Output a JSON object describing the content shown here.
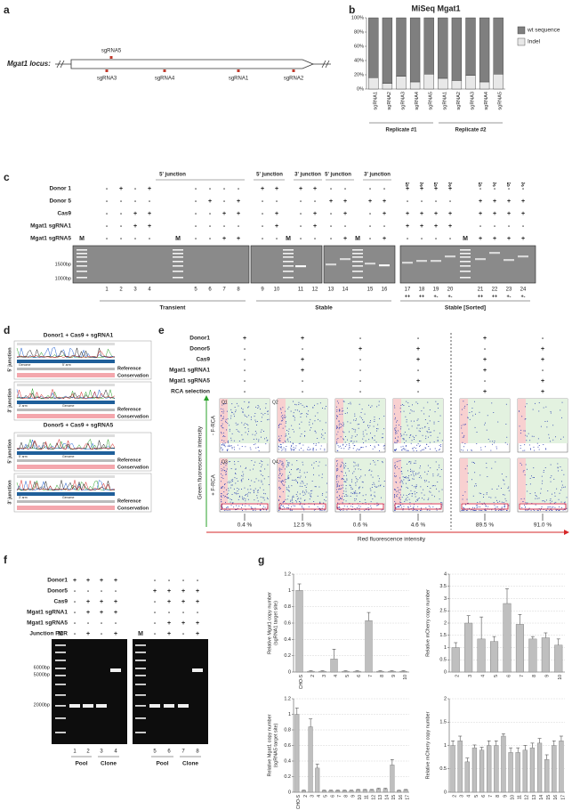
{
  "panel_labels": [
    "a",
    "b",
    "c",
    "d",
    "e",
    "f",
    "g"
  ],
  "locus": {
    "label": "Mgat1 locus:",
    "sgrnas": [
      "sgRNA5",
      "sgRNA3",
      "sgRNA4",
      "sgRNA1",
      "sgRNA2"
    ]
  },
  "chart_data": [
    {
      "type": "stacked_bar",
      "title": "MiSeq Mgat1",
      "categories": [
        "sgRNA1",
        "sgRNA2",
        "sgRNA3",
        "sgRNA4",
        "sgRNA5",
        "sgRNA1",
        "sgRNA2",
        "sgRNA3",
        "sgRNA4",
        "sgRNA5"
      ],
      "series": [
        {
          "name": "Indel",
          "color": "#e8e8e8",
          "values": [
            16,
            8,
            18,
            10,
            21,
            15,
            12,
            19,
            10,
            21
          ]
        },
        {
          "name": "wt sequence",
          "color": "#7f7f7f",
          "values": [
            84,
            92,
            82,
            90,
            79,
            85,
            88,
            81,
            90,
            79
          ]
        }
      ],
      "ylim": [
        0,
        100
      ],
      "yticks": [
        {
          "value": 0,
          "label": "0%"
        },
        {
          "value": 20,
          "label": "20%"
        },
        {
          "value": 40,
          "label": "40%"
        },
        {
          "value": 60,
          "label": "60%"
        },
        {
          "value": 80,
          "label": "80%"
        },
        {
          "value": 100,
          "label": "100%"
        }
      ],
      "groups": [
        "Replicate #1",
        "Replicate #2"
      ],
      "legend": "right"
    },
    {
      "type": "bar",
      "ylabel": [
        "Relative Mgat1 copy number",
        "(sgRNA1 target site)"
      ],
      "categories": [
        "CHO-S",
        "2",
        "3",
        "4",
        "5",
        "6",
        "7",
        "8",
        "9",
        "10"
      ],
      "values": [
        1.0,
        0.01,
        0.01,
        0.16,
        0.01,
        0.01,
        0.63,
        0.01,
        0.01,
        0.01
      ],
      "errors": [
        0.08,
        0.005,
        0.005,
        0.12,
        0.005,
        0.005,
        0.1,
        0.005,
        0.005,
        0.005
      ],
      "ylim": [
        0,
        1.2
      ],
      "yticks": [
        0,
        0.2,
        0.4,
        0.6,
        0.8,
        1,
        1.2
      ],
      "color": "#bfbfbf",
      "first_category_color": "#e8303a",
      "grid": true
    },
    {
      "type": "bar",
      "ylabel": [
        "Relative mCherry copy number"
      ],
      "categories": [
        "2",
        "3",
        "4",
        "5",
        "6",
        "7",
        "8",
        "9",
        "10"
      ],
      "values": [
        1.0,
        2.0,
        1.35,
        1.25,
        2.8,
        1.95,
        1.35,
        1.4,
        1.1
      ],
      "errors": [
        0.2,
        0.3,
        0.9,
        0.2,
        0.6,
        0.4,
        0.1,
        0.2,
        0.25
      ],
      "ylim": [
        0,
        4
      ],
      "yticks": [
        0,
        0.5,
        1,
        1.5,
        2,
        2.5,
        3,
        3.5,
        4
      ],
      "color": "#bfbfbf",
      "first_category_color": "#e8303a",
      "grid": true
    },
    {
      "type": "bar",
      "ylabel": [
        "Relative Mgat1 copy number",
        "(sgRNA5 target site)"
      ],
      "categories": [
        "CHO-S",
        "2",
        "3",
        "4",
        "5",
        "6",
        "7",
        "8",
        "9",
        "10",
        "11",
        "12",
        "13",
        "14",
        "15",
        "16",
        "17"
      ],
      "values": [
        1.0,
        0.02,
        0.84,
        0.31,
        0.02,
        0.02,
        0.02,
        0.02,
        0.02,
        0.03,
        0.03,
        0.03,
        0.04,
        0.04,
        0.35,
        0.02,
        0.03
      ],
      "errors": [
        0.08,
        0.005,
        0.1,
        0.05,
        0.005,
        0.005,
        0.005,
        0.005,
        0.005,
        0.005,
        0.005,
        0.005,
        0.01,
        0.01,
        0.07,
        0.005,
        0.005
      ],
      "ylim": [
        0,
        1.2
      ],
      "yticks": [
        0,
        0.2,
        0.4,
        0.6,
        0.8,
        1,
        1.2
      ],
      "color": "#bfbfbf",
      "first_category_color": "#e8303a",
      "grid": true
    },
    {
      "type": "bar",
      "ylabel": [
        "Relative mCherry copy number"
      ],
      "categories": [
        "2",
        "3",
        "4",
        "5",
        "6",
        "7",
        "8",
        "9",
        "10",
        "11",
        "12",
        "13",
        "14",
        "15",
        "16",
        "17"
      ],
      "values": [
        1.0,
        1.1,
        0.65,
        0.95,
        0.9,
        1.0,
        1.0,
        1.2,
        0.85,
        0.85,
        0.9,
        0.95,
        1.05,
        0.7,
        1.0,
        1.1
      ],
      "errors": [
        0.1,
        0.1,
        0.08,
        0.06,
        0.06,
        0.1,
        0.1,
        0.05,
        0.1,
        0.1,
        0.1,
        0.1,
        0.1,
        0.1,
        0.1,
        0.1
      ],
      "ylim": [
        0,
        2
      ],
      "yticks": [
        0,
        0.5,
        1,
        1.5,
        2
      ],
      "color": "#bfbfbf",
      "first_category_color": "#e8303a",
      "grid": true
    }
  ],
  "gel_c": {
    "headers": [
      "5' junction",
      "5' junction",
      "3' junction",
      "5' junction",
      "3' junction",
      "5'",
      "3'",
      "5'",
      "3'",
      "5'",
      "3'",
      "5'",
      "3'"
    ],
    "marker": "M",
    "rows": [
      {
        "label": "Donor 1",
        "signs": [
          "-",
          "+",
          "-",
          "+",
          "-",
          "-",
          "-",
          "-",
          "+",
          "+",
          "+",
          "+",
          "-",
          "-",
          "-",
          "-",
          "+",
          "+",
          "+",
          "+",
          "-",
          "-",
          "-",
          "-"
        ]
      },
      {
        "label": "Donor 5",
        "signs": [
          "-",
          "-",
          "-",
          "-",
          "-",
          "+",
          "-",
          "+",
          "-",
          "-",
          "-",
          "-",
          "+",
          "+",
          "+",
          "+",
          "-",
          "-",
          "-",
          "-",
          "+",
          "+",
          "+",
          "+"
        ]
      },
      {
        "label": "Cas9",
        "signs": [
          "-",
          "-",
          "+",
          "+",
          "-",
          "-",
          "+",
          "+",
          "-",
          "+",
          "-",
          "+",
          "-",
          "+",
          "-",
          "+",
          "+",
          "+",
          "+",
          "+",
          "+",
          "+",
          "+",
          "+"
        ]
      },
      {
        "label": "Mgat1 sgRNA1",
        "signs": [
          "-",
          "-",
          "+",
          "+",
          "-",
          "-",
          "-",
          "-",
          "-",
          "+",
          "-",
          "+",
          "-",
          "-",
          "-",
          "-",
          "+",
          "+",
          "+",
          "+",
          "-",
          "-",
          "-",
          "-"
        ]
      },
      {
        "label": "Mgat1 sgRNA5",
        "signs": [
          "-",
          "-",
          "-",
          "-",
          "-",
          "-",
          "+",
          "+",
          "-",
          "-",
          "-",
          "-",
          "-",
          "+",
          "-",
          "+",
          "-",
          "-",
          "-",
          "-",
          "+",
          "+",
          "+",
          "+"
        ]
      }
    ],
    "lanes": [
      "1",
      "2",
      "3",
      "4",
      "5",
      "6",
      "7",
      "8",
      "9",
      "10",
      "11",
      "12",
      "13",
      "14",
      "15",
      "16",
      "17",
      "18",
      "19",
      "20",
      "21",
      "22",
      "23",
      "24"
    ],
    "sizes": [
      "1500bp",
      "1000bp"
    ],
    "groups": [
      "Transient",
      "Stable",
      "Stable [Sorted]"
    ],
    "sorted_status": [
      "++",
      "++",
      "+-",
      "+-",
      "++",
      "++",
      "+-",
      "+-"
    ]
  },
  "sanger_d": {
    "blocks": [
      {
        "title": "Donor1 + Cas9 + sgRNA1",
        "junctions": [
          {
            "label": "5' junction",
            "arms": [
              "Genome",
              "5' arm"
            ]
          },
          {
            "label": "3' junction",
            "arms": [
              "3' arm",
              "Genome"
            ]
          }
        ]
      },
      {
        "title": "Donor5 + Cas9 + sgRNA5",
        "junctions": [
          {
            "label": "5' junction",
            "arms": [
              "5' arm",
              "Genome"
            ]
          },
          {
            "label": "3' junction",
            "arms": [
              "3' arm",
              "Genome"
            ]
          }
        ]
      }
    ],
    "reference": "Reference",
    "conservation": "Conservation"
  },
  "flow_e": {
    "rows": [
      {
        "label": "Donor1",
        "signs": [
          "+",
          "+",
          "-",
          "-",
          "+",
          "-"
        ]
      },
      {
        "label": "Donor5",
        "signs": [
          "-",
          "-",
          "+",
          "+",
          "-",
          "+"
        ]
      },
      {
        "label": "Cas9",
        "signs": [
          "-",
          "+",
          "-",
          "+",
          "+",
          "+"
        ]
      },
      {
        "label": "Mgat1 sgRNA1",
        "signs": [
          "-",
          "+",
          "-",
          "-",
          "+",
          "-"
        ]
      },
      {
        "label": "Mgat1 sgRNA5",
        "signs": [
          "-",
          "-",
          "-",
          "+",
          "-",
          "+"
        ]
      },
      {
        "label": "RCA selection",
        "signs": [
          "-",
          "-",
          "-",
          "-",
          "+",
          "+"
        ]
      }
    ],
    "row_labels": [
      "- F-RCA",
      "+ F-RCA"
    ],
    "quadrants": [
      "Q1",
      "Q2",
      "Q3",
      "Q4"
    ],
    "y_axis": "Green fluorescence intensity",
    "x_axis": "Red fluorescence intensity",
    "percentages": [
      "0.4 %",
      "12.5 %",
      "0.6 %",
      "4.6 %",
      "89.5 %",
      "91.0 %"
    ]
  },
  "gel_f": {
    "marker": "M",
    "rows": [
      {
        "label": "Donor1",
        "signs": [
          "+",
          "+",
          "+",
          "+",
          "-",
          "-",
          "-",
          "-"
        ]
      },
      {
        "label": "Donor5",
        "signs": [
          "-",
          "-",
          "-",
          "-",
          "+",
          "+",
          "+",
          "+"
        ]
      },
      {
        "label": "Cas9",
        "signs": [
          "-",
          "+",
          "+",
          "+",
          "-",
          "+",
          "+",
          "+"
        ]
      },
      {
        "label": "Mgat1 sgRNA1",
        "signs": [
          "-",
          "+",
          "+",
          "+",
          "-",
          "-",
          "-",
          "-"
        ]
      },
      {
        "label": "Mgat1 sgRNA5",
        "signs": [
          "-",
          "-",
          "-",
          "-",
          "-",
          "+",
          "+",
          "+"
        ]
      },
      {
        "label": "Junction PCR",
        "signs": [
          "-",
          "+",
          "-",
          "+",
          "-",
          "+",
          "-",
          "+"
        ]
      }
    ],
    "lanes": [
      "1",
      "2",
      "3",
      "4",
      "5",
      "6",
      "7",
      "8"
    ],
    "sizes": [
      "6000bp",
      "5000bp",
      "2000bp"
    ],
    "groups": [
      "Pool",
      "Clone",
      "Pool",
      "Clone"
    ]
  }
}
